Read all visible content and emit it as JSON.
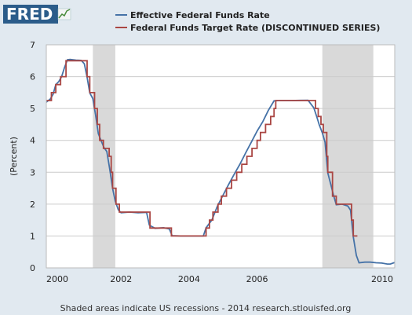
{
  "logo": {
    "text": "FRED"
  },
  "footer": {
    "note": "Shaded areas indicate US recessions - 2014 research.stlouisfed.org"
  },
  "colors": {
    "background": "#e1e9f0",
    "plot_background": "#ffffff",
    "grid": "#cccccc",
    "recession": "#d9d9d9",
    "effective": "#4572a7",
    "target": "#aa4643"
  },
  "chart_data": {
    "type": "line",
    "ylabel": "(Percent)",
    "xlabel": "",
    "ylim": [
      0,
      7
    ],
    "xlim": [
      1999.8,
      2010.05
    ],
    "yticks": [
      "0",
      "1",
      "2",
      "3",
      "4",
      "5",
      "6",
      "7"
    ],
    "xticks": [
      "2000",
      "2002",
      "2004",
      "2006",
      "2010"
    ],
    "grid": true,
    "legend_position": "top",
    "recessions": [
      [
        2001.17,
        2001.83
      ],
      [
        2007.92,
        2009.42
      ]
    ],
    "series": [
      {
        "name": "Effective Federal Funds Rate",
        "color": "#4572a7",
        "step": false,
        "points": [
          [
            1999.8,
            5.2
          ],
          [
            1999.92,
            5.3
          ],
          [
            2000.0,
            5.45
          ],
          [
            2000.08,
            5.75
          ],
          [
            2000.17,
            5.85
          ],
          [
            2000.25,
            6.0
          ],
          [
            2000.33,
            6.27
          ],
          [
            2000.42,
            6.53
          ],
          [
            2000.5,
            6.54
          ],
          [
            2000.67,
            6.52
          ],
          [
            2000.83,
            6.51
          ],
          [
            2000.92,
            6.4
          ],
          [
            2001.0,
            5.98
          ],
          [
            2001.08,
            5.49
          ],
          [
            2001.17,
            5.31
          ],
          [
            2001.25,
            4.8
          ],
          [
            2001.33,
            4.21
          ],
          [
            2001.42,
            3.97
          ],
          [
            2001.5,
            3.77
          ],
          [
            2001.58,
            3.65
          ],
          [
            2001.67,
            3.07
          ],
          [
            2001.75,
            2.49
          ],
          [
            2001.83,
            2.09
          ],
          [
            2001.92,
            1.82
          ],
          [
            2002.0,
            1.73
          ],
          [
            2002.25,
            1.75
          ],
          [
            2002.5,
            1.73
          ],
          [
            2002.75,
            1.74
          ],
          [
            2002.83,
            1.34
          ],
          [
            2003.0,
            1.24
          ],
          [
            2003.25,
            1.26
          ],
          [
            2003.42,
            1.22
          ],
          [
            2003.5,
            1.01
          ],
          [
            2003.75,
            1.0
          ],
          [
            2004.0,
            1.0
          ],
          [
            2004.42,
            1.0
          ],
          [
            2004.5,
            1.26
          ],
          [
            2004.67,
            1.5
          ],
          [
            2004.83,
            1.93
          ],
          [
            2005.0,
            2.28
          ],
          [
            2005.17,
            2.63
          ],
          [
            2005.33,
            2.94
          ],
          [
            2005.5,
            3.26
          ],
          [
            2005.67,
            3.62
          ],
          [
            2005.83,
            3.94
          ],
          [
            2006.0,
            4.29
          ],
          [
            2006.17,
            4.59
          ],
          [
            2006.33,
            4.94
          ],
          [
            2006.5,
            5.24
          ],
          [
            2006.67,
            5.25
          ],
          [
            2007.0,
            5.25
          ],
          [
            2007.5,
            5.26
          ],
          [
            2007.67,
            5.02
          ],
          [
            2007.75,
            4.76
          ],
          [
            2007.83,
            4.49
          ],
          [
            2007.92,
            4.24
          ],
          [
            2008.0,
            3.94
          ],
          [
            2008.08,
            2.98
          ],
          [
            2008.17,
            2.61
          ],
          [
            2008.25,
            2.28
          ],
          [
            2008.33,
            1.98
          ],
          [
            2008.5,
            2.0
          ],
          [
            2008.67,
            1.94
          ],
          [
            2008.75,
            1.81
          ],
          [
            2008.83,
            0.97
          ],
          [
            2008.92,
            0.39
          ],
          [
            2009.0,
            0.16
          ],
          [
            2009.17,
            0.18
          ],
          [
            2009.33,
            0.18
          ],
          [
            2009.5,
            0.16
          ],
          [
            2009.67,
            0.15
          ],
          [
            2009.83,
            0.12
          ],
          [
            2009.92,
            0.12
          ],
          [
            2010.05,
            0.17
          ]
        ]
      },
      {
        "name": "Federal Funds Target Rate (DISCONTINUED SERIES)",
        "color": "#aa4643",
        "step": true,
        "points": [
          [
            1999.8,
            5.25
          ],
          [
            1999.95,
            5.5
          ],
          [
            2000.08,
            5.75
          ],
          [
            2000.22,
            6.0
          ],
          [
            2000.38,
            6.5
          ],
          [
            2001.0,
            6.0
          ],
          [
            2001.08,
            5.5
          ],
          [
            2001.22,
            5.0
          ],
          [
            2001.3,
            4.5
          ],
          [
            2001.37,
            4.0
          ],
          [
            2001.48,
            3.75
          ],
          [
            2001.65,
            3.5
          ],
          [
            2001.71,
            3.0
          ],
          [
            2001.75,
            2.5
          ],
          [
            2001.85,
            2.0
          ],
          [
            2001.95,
            1.75
          ],
          [
            2002.85,
            1.25
          ],
          [
            2003.48,
            1.0
          ],
          [
            2004.5,
            1.25
          ],
          [
            2004.6,
            1.5
          ],
          [
            2004.7,
            1.75
          ],
          [
            2004.85,
            2.0
          ],
          [
            2004.95,
            2.25
          ],
          [
            2005.1,
            2.5
          ],
          [
            2005.25,
            2.75
          ],
          [
            2005.4,
            3.0
          ],
          [
            2005.55,
            3.25
          ],
          [
            2005.7,
            3.5
          ],
          [
            2005.85,
            3.75
          ],
          [
            2006.0,
            4.0
          ],
          [
            2006.1,
            4.25
          ],
          [
            2006.25,
            4.5
          ],
          [
            2006.4,
            4.75
          ],
          [
            2006.5,
            5.0
          ],
          [
            2006.55,
            5.25
          ],
          [
            2007.72,
            5.0
          ],
          [
            2007.8,
            4.75
          ],
          [
            2007.88,
            4.5
          ],
          [
            2007.95,
            4.25
          ],
          [
            2008.05,
            3.5
          ],
          [
            2008.08,
            3.0
          ],
          [
            2008.22,
            2.25
          ],
          [
            2008.33,
            2.0
          ],
          [
            2008.78,
            1.5
          ],
          [
            2008.83,
            1.0
          ],
          [
            2008.95,
            1.0
          ]
        ]
      }
    ]
  }
}
